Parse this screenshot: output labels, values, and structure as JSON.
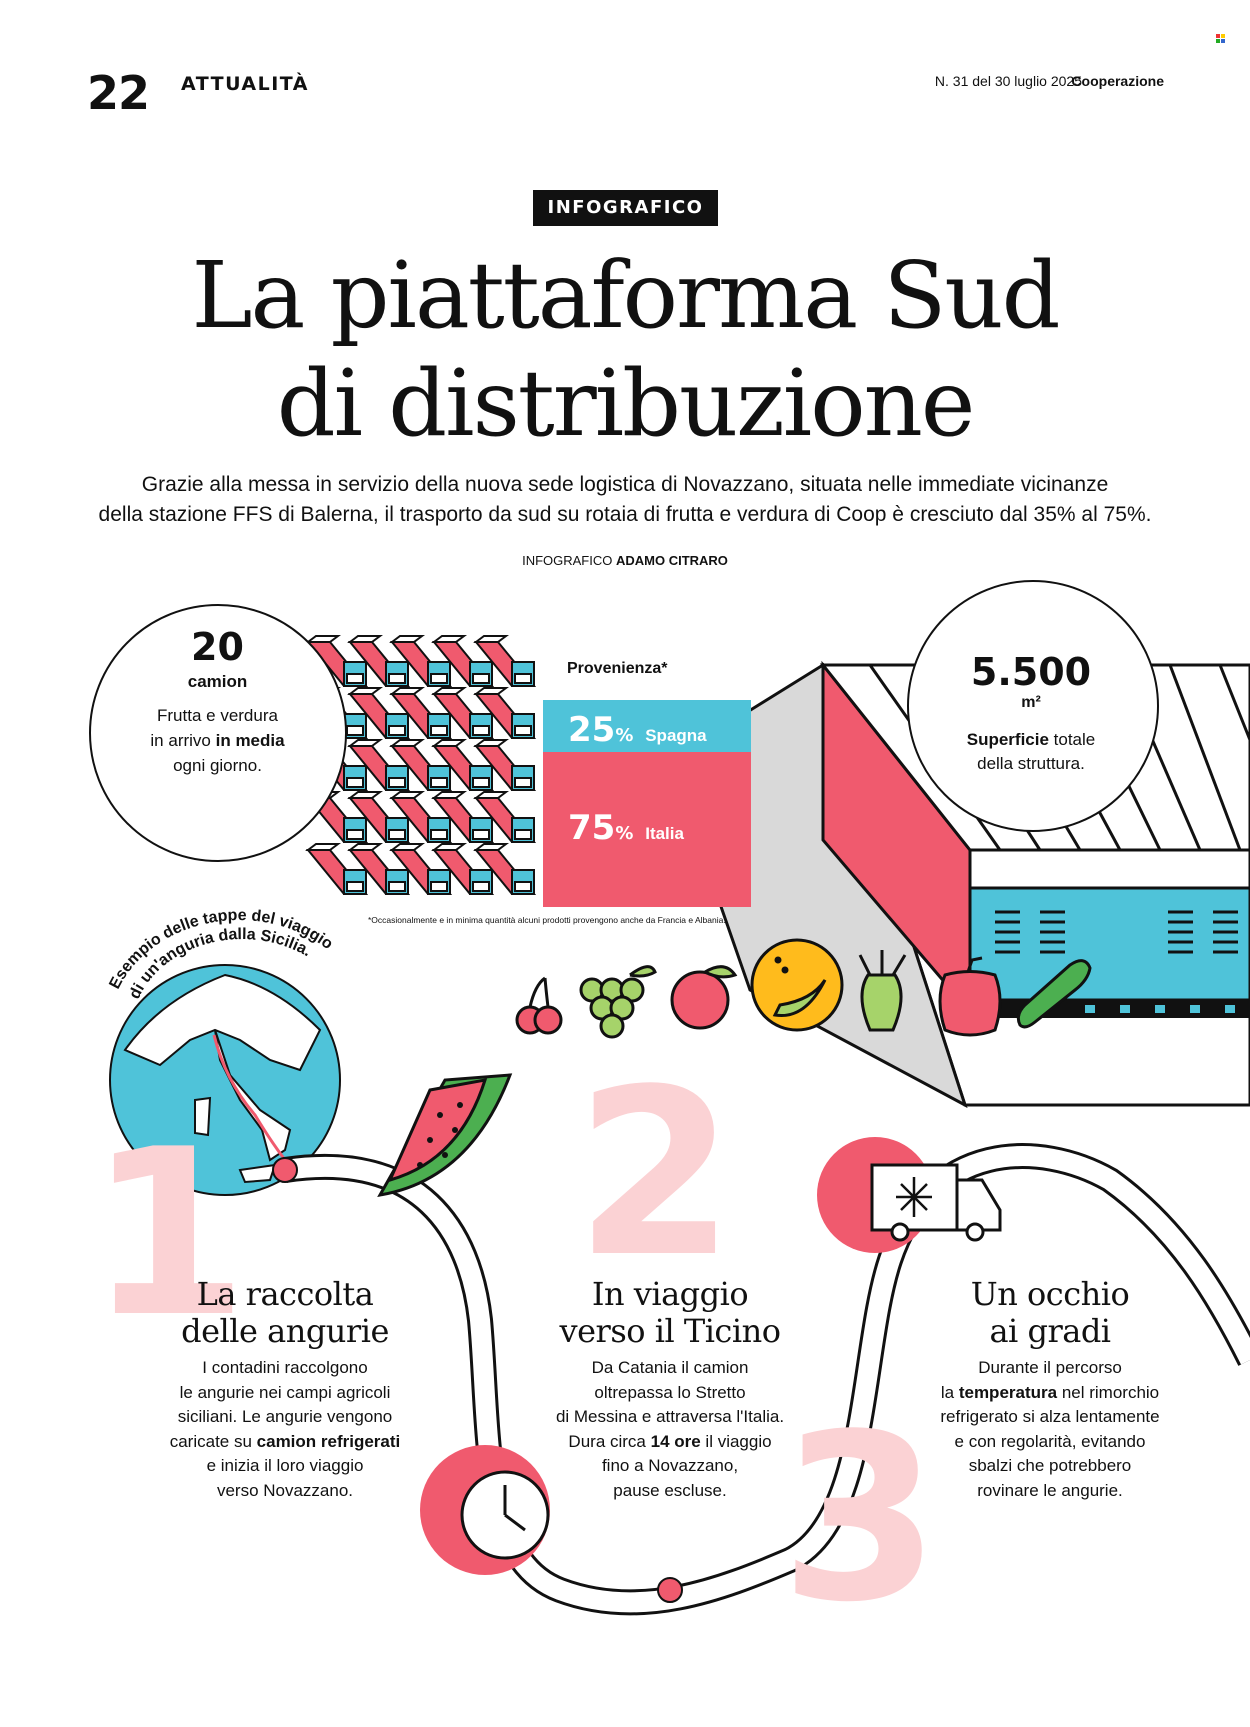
{
  "header": {
    "page_number": "22",
    "section": "ATTUALITÀ",
    "issue": "N. 31 del 30 luglio 2025",
    "magazine": "Cooperazione"
  },
  "article": {
    "kicker": "INFOGRAFICO",
    "title_line1": "La piattaforma Sud",
    "title_line2": "di distribuzione",
    "lede_line1": "Grazie alla messa in servizio della nuova sede logistica di Novazzano, situata nelle immediate vicinanze",
    "lede_line2": "della stazione FFS di Balerna, il trasporto da sud su rotaia di frutta e verdura di Coop è cresciuto dal 35% al 75%.",
    "credit_prefix": "INFOGRAFICO",
    "credit_name": "ADAMO CITRARO"
  },
  "stats": {
    "trucks": {
      "number": "20",
      "unit": "camion",
      "desc_a": "Frutta e verdura",
      "desc_b": "in arrivo",
      "desc_b_bold": "in media",
      "desc_c": "ogni giorno."
    },
    "origin": {
      "title": "Provenienza*",
      "spain_value": "25",
      "spain_label": "Spagna",
      "italy_value": "75",
      "italy_label": "Italia",
      "percent_sign": "%",
      "footnote": "*Occasionalmente e in minima quantità alcuni prodotti provengono anche da Francia e Albania."
    },
    "area": {
      "number": "5.500",
      "unit": "m²",
      "desc_bold": "Superficie",
      "desc_a": " totale",
      "desc_b": "della struttura."
    }
  },
  "chart_data": {
    "type": "bar",
    "title": "Provenienza*",
    "categories": [
      "Spagna",
      "Italia"
    ],
    "values": [
      25,
      75
    ],
    "ylabel": "%"
  },
  "globe_caption": {
    "line1": "Esempio delle tappe del viaggio",
    "line2": "di un'anguria dalla Sicilia."
  },
  "steps": [
    {
      "number": "1",
      "title_l1": "La raccolta",
      "title_l2": "delle angurie",
      "b1": "I contadini raccolgono",
      "b2": "le angurie nei campi agricoli",
      "b3": "siciliani. Le angurie vengono",
      "b4_a": "caricate su ",
      "b4_bold": "camion refrigerati",
      "b5": "e inizia il loro viaggio",
      "b6": "verso Novazzano."
    },
    {
      "number": "2",
      "title_l1": "In viaggio",
      "title_l2": "verso il Ticino",
      "b1": "Da Catania il camion",
      "b2": "oltrepassa lo Stretto",
      "b3": "di Messina e attraversa l'Italia.",
      "b4_a": "Dura circa ",
      "b4_bold": "14 ore",
      "b4_c": " il viaggio",
      "b5": "fino a Novazzano,",
      "b6": "pause escluse."
    },
    {
      "number": "3",
      "title_l1": "Un occhio",
      "title_l2": "ai gradi",
      "b1": "Durante il percorso",
      "b2_a": "la ",
      "b2_bold": "temperatura",
      "b2_c": " nel rimorchio",
      "b3": "refrigerato si alza lentamente",
      "b4": "e con regolarità, evitando",
      "b5": "sbalzi che potrebbero",
      "b6": "rovinare le angurie."
    }
  ],
  "colors": {
    "pink": "#f05a6e",
    "cyan": "#4fc3d9",
    "light_pink": "#fbd2d4",
    "gray": "#d9d9d9"
  }
}
